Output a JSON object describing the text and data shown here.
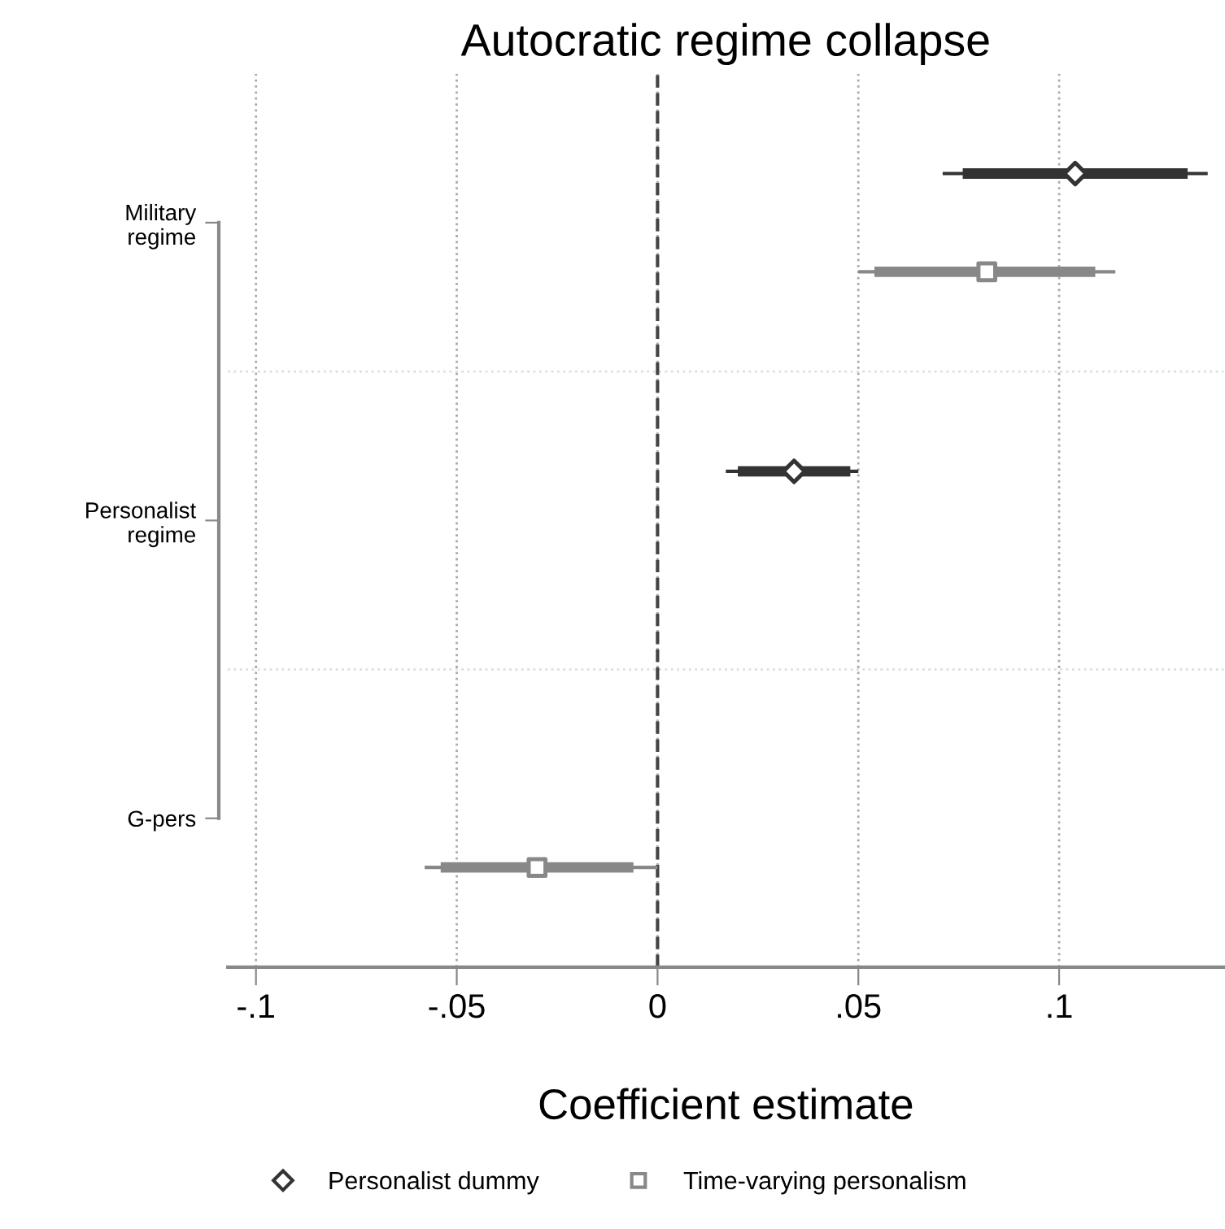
{
  "chart_data": {
    "type": "scatter",
    "orientation": "horizontal",
    "title": "Autocratic regime collapse",
    "xlabel": "Coefficient estimate",
    "categories": [
      "Military\nregime",
      "Personalist\nregime",
      "G-pers"
    ],
    "xlim": [
      -0.107,
      0.141
    ],
    "xticks": [
      {
        "value": -0.1,
        "label": "-.1"
      },
      {
        "value": -0.05,
        "label": "-.05"
      },
      0,
      {
        "value": 0.05,
        "label": ".05"
      },
      {
        "value": 0.1,
        "label": ".1"
      }
    ],
    "grid": true,
    "legend": "bottom",
    "ref_lines": [
      {
        "axis": "x",
        "value": 0,
        "color": "#444444",
        "line_style": "dashed"
      }
    ],
    "series": [
      {
        "type": "bar",
        "color": "#333333",
        "base": [
          0.076,
          0.02,
          null
        ],
        "values": [
          0.056,
          0.028,
          null
        ]
      },
      {
        "type": "bar",
        "color": "#888888",
        "base": [
          0.054,
          null,
          -0.054
        ],
        "values": [
          0.055,
          null,
          0.048
        ]
      },
      {
        "name": "Personalist dummy",
        "color": "#333333",
        "marker": "diamond",
        "values": [
          0.104,
          0.034,
          null
        ],
        "errors": [
          [
            0.071,
            0.137
          ],
          [
            0.017,
            0.05
          ],
          null
        ]
      },
      {
        "name": "Time-varying personalism",
        "color": "#888888",
        "marker": "square",
        "values": [
          0.082,
          null,
          -0.03
        ],
        "errors": [
          [
            0.05,
            0.114
          ],
          null,
          [
            -0.058,
            0.0
          ]
        ]
      }
    ]
  }
}
